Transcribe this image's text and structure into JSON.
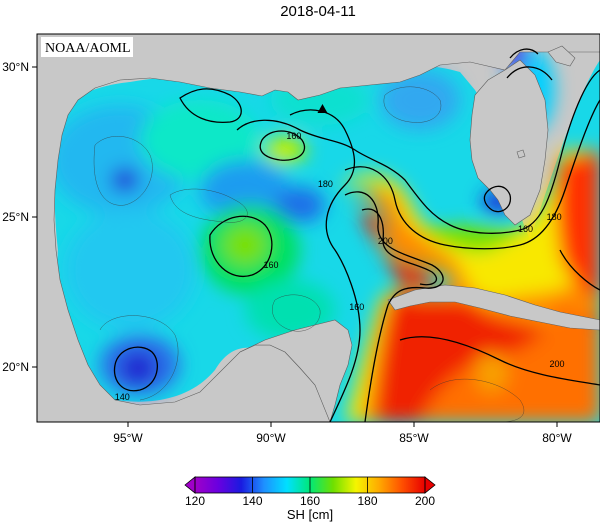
{
  "title": "2018-04-11",
  "agency_label": "NOAA/AOML",
  "lat_ticks": [
    {
      "value": 30,
      "label": "30°N"
    },
    {
      "value": 25,
      "label": "25°N"
    },
    {
      "value": 20,
      "label": "20°N"
    }
  ],
  "lon_ticks": [
    {
      "value": -95,
      "label": "95°W"
    },
    {
      "value": -90,
      "label": "90°W"
    },
    {
      "value": -85,
      "label": "85°W"
    },
    {
      "value": -80,
      "label": "80°W"
    }
  ],
  "contour_labels": [
    {
      "text": "160",
      "lon": -89.2,
      "lat": 27.6
    },
    {
      "text": "180",
      "lon": -88.1,
      "lat": 26.0
    },
    {
      "text": "160",
      "lon": -90.0,
      "lat": 23.3
    },
    {
      "text": "200",
      "lon": -86.0,
      "lat": 24.1
    },
    {
      "text": "160",
      "lon": -87.0,
      "lat": 21.9
    },
    {
      "text": "140",
      "lon": -95.2,
      "lat": 18.9
    },
    {
      "text": "160",
      "lon": -81.1,
      "lat": 24.5
    },
    {
      "text": "180",
      "lon": -80.1,
      "lat": 24.9
    },
    {
      "text": "200",
      "lon": -80.0,
      "lat": 20.0
    }
  ],
  "platform_marker": {
    "symbol": "triangle",
    "lon": -88.2,
    "lat": 28.6
  },
  "colorbar": {
    "min": 120,
    "max": 200,
    "ticks": [
      {
        "value": 120,
        "label": "120"
      },
      {
        "value": 140,
        "label": "140"
      },
      {
        "value": 160,
        "label": "160"
      },
      {
        "value": 180,
        "label": "180"
      },
      {
        "value": 200,
        "label": "200"
      }
    ],
    "unit_label": "SH [cm]",
    "stops": [
      "#a000c8",
      "#6a00e0",
      "#1a1ae0",
      "#1e90ff",
      "#00e0ff",
      "#00e878",
      "#6ee000",
      "#f5f500",
      "#ffaa00",
      "#ff5000",
      "#e80000"
    ]
  },
  "colors": {
    "land": "#c8c8c8",
    "frame": "#000000"
  }
}
